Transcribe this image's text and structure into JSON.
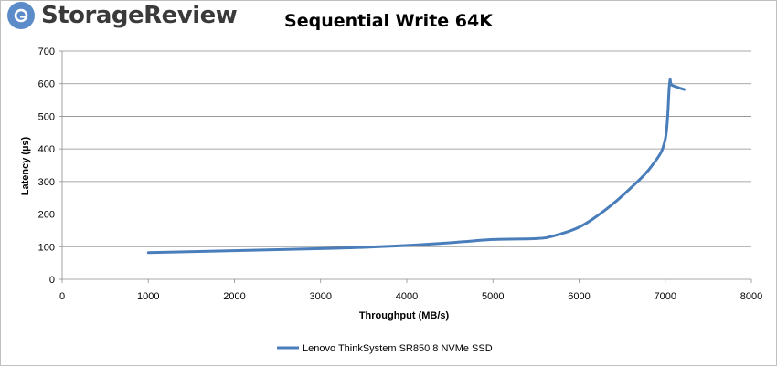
{
  "brand": {
    "name": "StorageReview",
    "logo_icon": "storagereview-logo-icon",
    "logo_color": "#5b8cc9"
  },
  "chart_data": {
    "type": "line",
    "title": "Sequential Write 64K",
    "xlabel": "Throughput (MB/s)",
    "ylabel": "Latency (µs)",
    "xlim": [
      0,
      8000
    ],
    "ylim": [
      0,
      700
    ],
    "xticks": [
      0,
      1000,
      2000,
      3000,
      4000,
      5000,
      6000,
      7000,
      8000
    ],
    "yticks": [
      0,
      100,
      200,
      300,
      400,
      500,
      600,
      700
    ],
    "grid": "horizontal",
    "legend_position": "bottom",
    "series": [
      {
        "name": "Lenovo ThinkSystem SR850 8 NVMe SSD",
        "color": "#4a7ebb",
        "x": [
          1000,
          2000,
          3000,
          3500,
          4000,
          4500,
          5000,
          5500,
          5700,
          6000,
          6300,
          6600,
          6850,
          7000,
          7050,
          7080,
          7220
        ],
        "y": [
          82,
          88,
          94,
          98,
          104,
          112,
          122,
          125,
          133,
          160,
          212,
          280,
          350,
          430,
          600,
          595,
          582
        ]
      }
    ]
  }
}
